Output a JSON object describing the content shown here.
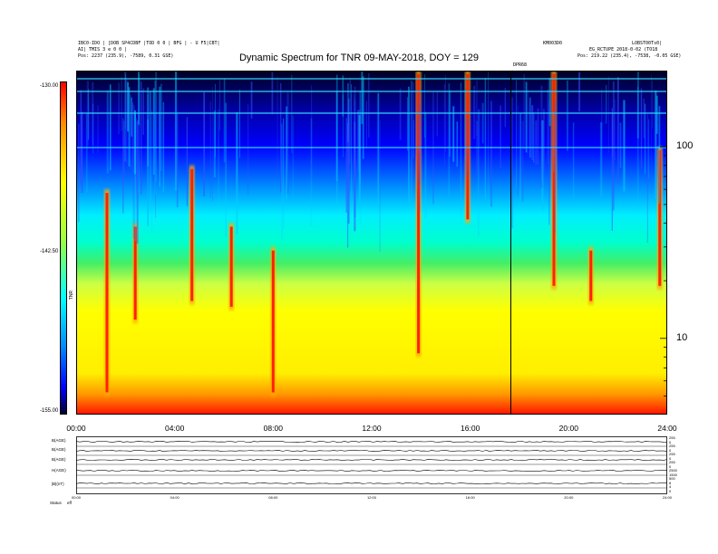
{
  "header": {
    "title": "Dynamic Spectrum for TNR 09-MAY-2018, DOY = 129",
    "left_line1": "IBC0-IDO | [DOB SP4CDBF |TOD 0 0 | BFG | - U F5|CBT|",
    "left_line2": "AI| TMIS 3 e 0 0 |",
    "left_line3": "Pos:   2237 (235.9), -7589, 0.31 GSE)",
    "right_line1_a": "KM003D0",
    "right_line1_b": "LOBST00Ts0|",
    "right_line2": "EG_RCTUPE  2018-0-02 (TO18",
    "right_line3": "Pos:   219.22 (235.4), -7538, -0.05 GSE)",
    "event_marker": "DPR68"
  },
  "chart_data": {
    "type": "heatmap",
    "title": "Dynamic Spectrum for TNR 09-MAY-2018, DOY = 129",
    "x_tick_labels": [
      "00:00",
      "04:00",
      "08:00",
      "12:00",
      "16:00",
      "20:00",
      "24:00"
    ],
    "x_range_hours": [
      0,
      24
    ],
    "y_scale": "log",
    "y_range_khz": [
      4,
      250
    ],
    "y_tick_labels": [
      "100",
      "10"
    ],
    "y_ticks_khz": [
      100,
      10
    ],
    "colorbar": {
      "labels": [
        "-130.00",
        "-142.50",
        "-155.00"
      ],
      "values": [
        -130.0,
        -142.5,
        -155.0
      ],
      "unit_label": "TNR",
      "colors": [
        "#ff0000",
        "#ffff00",
        "#00ffff",
        "#0000ff",
        "#000000"
      ]
    },
    "event_line_hour": 17.65,
    "bursts": [
      {
        "hour": 1.25,
        "lo_khz": 5,
        "hi_khz": 60
      },
      {
        "hour": 2.4,
        "lo_khz": 12,
        "hi_khz": 40
      },
      {
        "hour": 4.7,
        "lo_khz": 15,
        "hi_khz": 80
      },
      {
        "hour": 6.3,
        "lo_khz": 14,
        "hi_khz": 40
      },
      {
        "hour": 8.0,
        "lo_khz": 5,
        "hi_khz": 30
      },
      {
        "hour": 13.9,
        "lo_khz": 8,
        "hi_khz": 250
      },
      {
        "hour": 15.9,
        "lo_khz": 40,
        "hi_khz": 250
      },
      {
        "hour": 19.4,
        "lo_khz": 18,
        "hi_khz": 250
      },
      {
        "hour": 20.9,
        "lo_khz": 15,
        "hi_khz": 30
      },
      {
        "hour": 23.7,
        "lo_khz": 18,
        "hi_khz": 100
      }
    ]
  },
  "bottom_panels": {
    "left_labels": [
      "B(AGE)",
      "B(AGE)",
      "B(AGE)",
      "H(AGE)",
      "|B|(nT)",
      "Status"
    ],
    "right_labels": [
      "255",
      "0",
      "255",
      "0",
      "255",
      "0",
      "255",
      "0",
      "2500",
      "1500",
      "500",
      "8",
      "4",
      "0"
    ],
    "x_tick_labels": [
      "00:00",
      "04:00",
      "08:00",
      "12:00",
      "16:00",
      "20:00",
      "24:00"
    ],
    "status_text": "eff"
  }
}
